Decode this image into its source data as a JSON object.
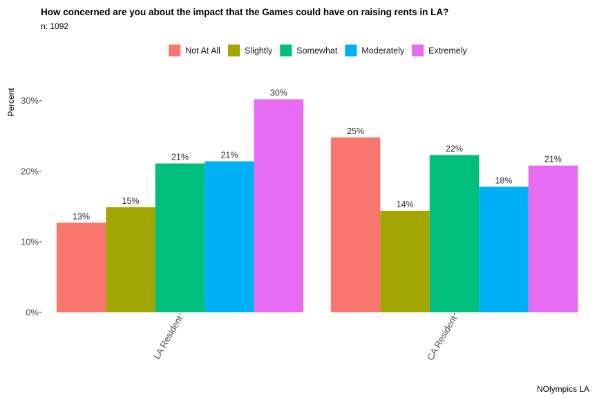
{
  "chart_data": {
    "type": "bar",
    "title": "How concerned are you about the impact that the Games could have on raising rents in LA?",
    "subtitle": "n: 1092",
    "ylabel": "Percent",
    "xlabel": "",
    "caption": "NOlympics LA",
    "categories": [
      "LA Resident",
      "CA Resident"
    ],
    "ylim": [
      0,
      30.5
    ],
    "yticks": [
      0,
      10,
      20,
      30
    ],
    "ytick_labels": [
      "0%",
      "10%",
      "20%",
      "30%"
    ],
    "grid": false,
    "legend_position": "top",
    "series": [
      {
        "name": "Not At All",
        "color": "#F8766D",
        "values": [
          12.7,
          24.8
        ],
        "labels": [
          "13%",
          "25%"
        ]
      },
      {
        "name": "Slightly",
        "color": "#A3A500",
        "values": [
          14.9,
          14.4
        ],
        "labels": [
          "15%",
          "14%"
        ]
      },
      {
        "name": "Somewhat",
        "color": "#00BF7D",
        "values": [
          21.1,
          22.3
        ],
        "labels": [
          "21%",
          "22%"
        ]
      },
      {
        "name": "Moderately",
        "color": "#00B0F6",
        "values": [
          21.4,
          17.8
        ],
        "labels": [
          "21%",
          "18%"
        ]
      },
      {
        "name": "Extremely",
        "color": "#E76BF3",
        "values": [
          30.2,
          20.8
        ],
        "labels": [
          "30%",
          "21%"
        ]
      }
    ]
  }
}
